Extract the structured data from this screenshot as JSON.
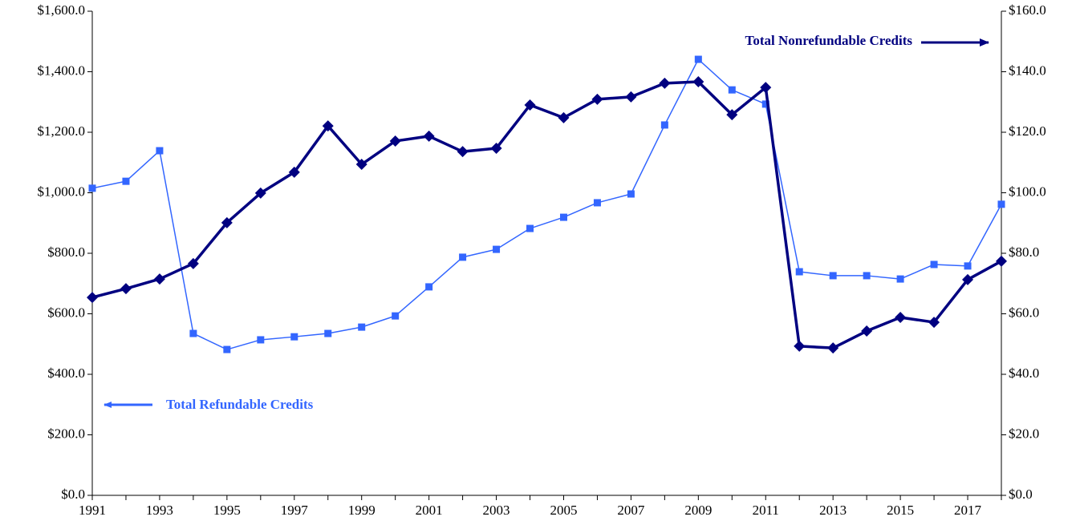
{
  "chart_data": {
    "type": "line",
    "categories": [
      "1991",
      null,
      "1993",
      null,
      "1995",
      null,
      "1997",
      null,
      "1999",
      null,
      "2001",
      null,
      "2003",
      null,
      "2005",
      null,
      "2007",
      null,
      "2009",
      null,
      "2011",
      null,
      "2013",
      null,
      "2015",
      null,
      "2017",
      null
    ],
    "series": [
      {
        "name": "Total Refundable Credits",
        "color": "#3366ff",
        "marker": "square",
        "axis": "y",
        "values": [
          1015,
          1038,
          1139,
          535,
          482,
          514,
          524,
          535,
          556,
          593,
          689,
          787,
          813,
          882,
          919,
          967,
          996,
          1224,
          1441,
          1340,
          1293,
          739,
          726,
          726,
          715,
          763,
          758,
          962
        ]
      },
      {
        "name": "Total Nonrefundable Credits",
        "color": "#000080",
        "marker": "diamond",
        "axis": "y2",
        "values": [
          65.4,
          68.3,
          71.5,
          76.6,
          90.1,
          99.9,
          106.8,
          122.1,
          109.4,
          117.1,
          118.7,
          113.6,
          114.7,
          129.0,
          124.8,
          130.9,
          131.7,
          136.2,
          136.7,
          125.8,
          134.8,
          49.3,
          48.7,
          54.3,
          58.8,
          57.2,
          71.3,
          77.4
        ]
      }
    ],
    "ylim": [
      0,
      1600
    ],
    "yticks": [
      {
        "value": 0,
        "label": "$0.0"
      },
      {
        "value": 200,
        "label": "$200.0"
      },
      {
        "value": 400,
        "label": "$400.0"
      },
      {
        "value": 600,
        "label": "$600.0"
      },
      {
        "value": 800,
        "label": "$800.0"
      },
      {
        "value": 1000,
        "label": "$1,000.0"
      },
      {
        "value": 1200,
        "label": "$1,200.0"
      },
      {
        "value": 1400,
        "label": "$1,400.0"
      },
      {
        "value": 1600,
        "label": "$1,600.0"
      }
    ],
    "y2lim": [
      0,
      160
    ],
    "y2ticks": [
      {
        "value": 0,
        "label": "$0.0"
      },
      {
        "value": 20,
        "label": "$20.0"
      },
      {
        "value": 40,
        "label": "$40.0"
      },
      {
        "value": 60,
        "label": "$60.0"
      },
      {
        "value": 80,
        "label": "$80.0"
      },
      {
        "value": 100,
        "label": "$100.0"
      },
      {
        "value": 120,
        "label": "$120.0"
      },
      {
        "value": 140,
        "label": "$140.0"
      },
      {
        "value": 160,
        "label": "$160.0"
      }
    ],
    "grid": false
  }
}
